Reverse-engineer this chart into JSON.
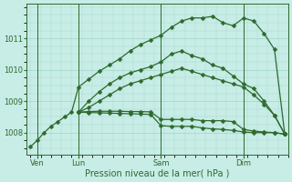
{
  "title": "",
  "xlabel": "Pression niveau de la mer( hPa )",
  "ylabel": "",
  "bg_color": "#c8ece6",
  "plot_bg_color": "#c8ece6",
  "grid_color": "#9dd4ca",
  "line_color": "#2d6a2d",
  "text_color": "#2d6a2d",
  "ylim": [
    1007.3,
    1012.1
  ],
  "yticks": [
    1008,
    1009,
    1010,
    1011
  ],
  "day_labels": [
    "Ven",
    "Lun",
    "Sam",
    "Dim"
  ],
  "day_positions": [
    2,
    14,
    38,
    62
  ],
  "vline_positions": [
    2,
    14,
    38,
    62
  ],
  "xlim": [
    -1,
    75
  ],
  "series": [
    {
      "x": [
        0,
        2,
        4,
        6,
        8,
        10,
        12,
        14,
        17,
        20,
        23,
        26,
        29,
        32,
        35,
        38,
        41,
        44,
        47,
        50,
        53,
        56,
        59,
        62,
        65,
        68,
        71,
        74
      ],
      "y": [
        1007.55,
        1007.75,
        1008.0,
        1008.2,
        1008.35,
        1008.5,
        1008.65,
        1009.45,
        1009.7,
        1009.95,
        1010.15,
        1010.35,
        1010.6,
        1010.8,
        1010.95,
        1011.1,
        1011.35,
        1011.55,
        1011.65,
        1011.65,
        1011.7,
        1011.5,
        1011.4,
        1011.65,
        1011.55,
        1011.15,
        1010.65,
        1007.95
      ],
      "marker": "D",
      "ms": 2.5
    },
    {
      "x": [
        14,
        17,
        20,
        23,
        26,
        29,
        32,
        35,
        38,
        41,
        44,
        47,
        50,
        53,
        56,
        59,
        62,
        65,
        68,
        71,
        74
      ],
      "y": [
        1008.65,
        1009.0,
        1009.3,
        1009.55,
        1009.75,
        1009.9,
        1010.0,
        1010.1,
        1010.25,
        1010.5,
        1010.6,
        1010.45,
        1010.35,
        1010.15,
        1010.05,
        1009.8,
        1009.55,
        1009.4,
        1009.0,
        1008.55,
        1007.95
      ],
      "marker": "D",
      "ms": 2.5
    },
    {
      "x": [
        14,
        17,
        20,
        23,
        26,
        29,
        32,
        35,
        38,
        41,
        44,
        47,
        50,
        53,
        56,
        59,
        62,
        65,
        68,
        71,
        74
      ],
      "y": [
        1008.65,
        1008.8,
        1009.0,
        1009.2,
        1009.4,
        1009.55,
        1009.65,
        1009.75,
        1009.85,
        1009.95,
        1010.05,
        1009.95,
        1009.85,
        1009.75,
        1009.65,
        1009.55,
        1009.45,
        1009.2,
        1008.9,
        1008.55,
        1007.95
      ],
      "marker": "D",
      "ms": 2.5
    },
    {
      "x": [
        14,
        17,
        20,
        23,
        26,
        29,
        32,
        35,
        38,
        41,
        44,
        47,
        50,
        53,
        56,
        59,
        62,
        65,
        68,
        71,
        74
      ],
      "y": [
        1008.65,
        1008.67,
        1008.68,
        1008.68,
        1008.68,
        1008.67,
        1008.67,
        1008.66,
        1008.42,
        1008.42,
        1008.42,
        1008.42,
        1008.38,
        1008.38,
        1008.38,
        1008.35,
        1008.1,
        1008.05,
        1008.02,
        1008.0,
        1007.95
      ],
      "marker": "D",
      "ms": 2.5
    },
    {
      "x": [
        14,
        17,
        20,
        23,
        26,
        29,
        32,
        35,
        38,
        41,
        44,
        47,
        50,
        53,
        56,
        59,
        62,
        65,
        68,
        71,
        74
      ],
      "y": [
        1008.65,
        1008.64,
        1008.63,
        1008.62,
        1008.61,
        1008.6,
        1008.59,
        1008.58,
        1008.22,
        1008.2,
        1008.2,
        1008.2,
        1008.15,
        1008.12,
        1008.1,
        1008.07,
        1008.02,
        1008.0,
        1008.0,
        1008.0,
        1007.95
      ],
      "marker": "D",
      "ms": 2.5
    }
  ]
}
